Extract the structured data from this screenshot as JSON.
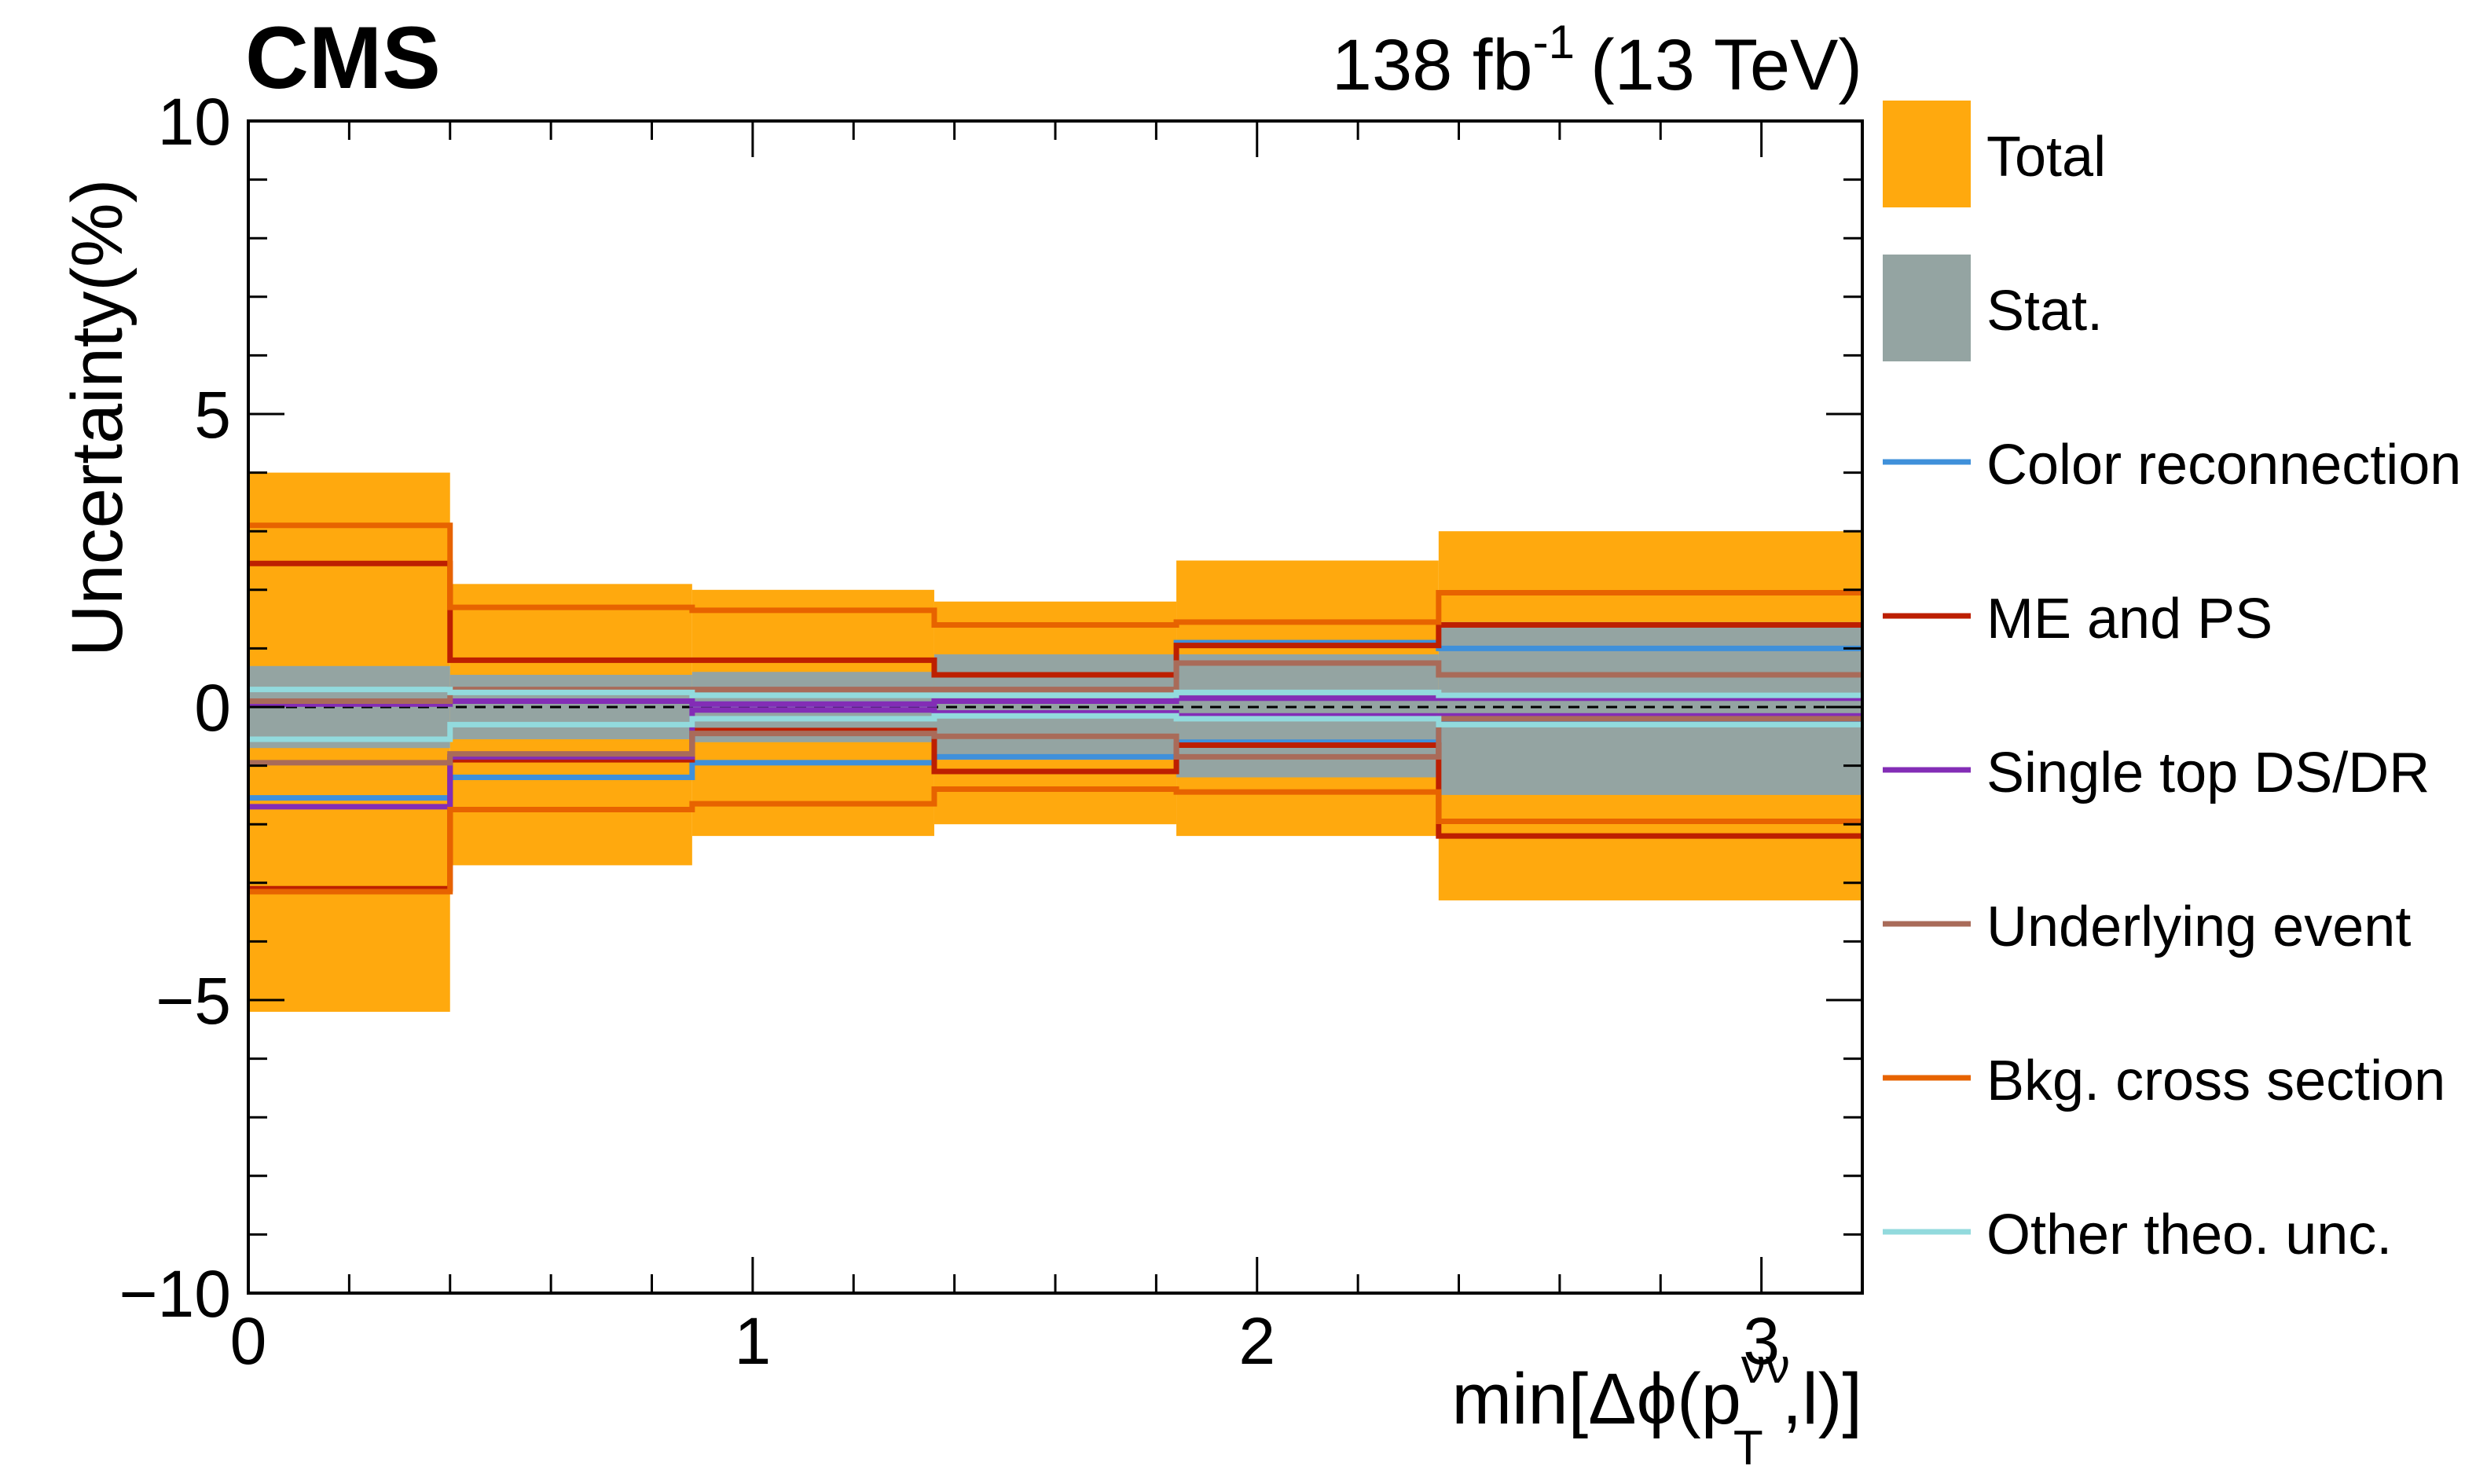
{
  "header": {
    "experiment": "CMS",
    "lumi_value": "138 fb",
    "lumi_exp": "-1",
    "energy": "(13 TeV)"
  },
  "chart_data": {
    "type": "step",
    "xlabel": {
      "prefix": "min[Δϕ(p",
      "sup": "νν",
      "sub": "T",
      "suffix": ",l)]"
    },
    "ylabel": "Uncertainty(%)",
    "xlim": [
      0,
      3.2
    ],
    "ylim": [
      -10,
      10
    ],
    "x_ticks": [
      {
        "value": 0,
        "label": "0"
      },
      {
        "value": 1,
        "label": "1"
      },
      {
        "value": 2,
        "label": "2"
      },
      {
        "value": 3,
        "label": "3"
      }
    ],
    "y_ticks": [
      {
        "value": 10,
        "label": "10"
      },
      {
        "value": 5,
        "label": "5"
      },
      {
        "value": 0,
        "label": "0"
      },
      {
        "value": -5,
        "label": "−5"
      },
      {
        "value": -10,
        "label": "−10"
      }
    ],
    "x_minor_step": 0.2,
    "y_minor_step": 1,
    "bin_edges": [
      0,
      0.4,
      0.88,
      1.36,
      1.84,
      2.36,
      3.2
    ],
    "reference_line": 0,
    "bands": [
      {
        "name": "Total",
        "color": "#ffa90e",
        "up": [
          4.0,
          2.1,
          2.0,
          1.8,
          2.5,
          3.0
        ],
        "down": [
          -5.2,
          -2.7,
          -2.2,
          -2.0,
          -2.2,
          -3.3
        ]
      },
      {
        "name": "Stat.",
        "color": "#94a4a2",
        "up": [
          0.7,
          0.55,
          0.6,
          0.9,
          0.9,
          1.45
        ],
        "down": [
          -0.7,
          -0.55,
          -0.6,
          -0.9,
          -1.2,
          -1.5
        ]
      }
    ],
    "series": [
      {
        "name": "Color reconnection",
        "color": "#3f90da",
        "up": [
          0.1,
          0.1,
          0.05,
          0.1,
          1.1,
          1.0
        ],
        "down": [
          -1.55,
          -1.2,
          -0.95,
          -0.85,
          -0.6,
          -0.25
        ]
      },
      {
        "name": "ME and PS",
        "color": "#bd1f01",
        "up": [
          2.45,
          0.8,
          0.8,
          0.55,
          1.05,
          1.4
        ],
        "down": [
          -3.1,
          -0.9,
          -0.4,
          -1.1,
          -0.65,
          -2.2
        ]
      },
      {
        "name": "Single top DS/DR",
        "color": "#832db6",
        "up": [
          0.05,
          0.1,
          0.05,
          0.1,
          0.15,
          0.15
        ],
        "down": [
          -1.7,
          -0.85,
          -0.05,
          -0.1,
          -0.15,
          -0.15
        ]
      },
      {
        "name": "Underlying event",
        "color": "#a96b59",
        "up": [
          0.1,
          0.3,
          0.3,
          0.3,
          0.75,
          0.55
        ],
        "down": [
          -0.95,
          -0.8,
          -0.45,
          -0.5,
          -0.85,
          -0.2
        ]
      },
      {
        "name": "Bkg. cross section",
        "color": "#e76300",
        "up": [
          3.1,
          1.7,
          1.65,
          1.4,
          1.45,
          1.95
        ],
        "down": [
          -3.15,
          -1.75,
          -1.65,
          -1.4,
          -1.45,
          -1.95
        ]
      },
      {
        "name": "Other theo. unc.",
        "color": "#92dadd",
        "up": [
          0.3,
          0.25,
          0.2,
          0.2,
          0.25,
          0.2
        ],
        "down": [
          -0.55,
          -0.3,
          -0.2,
          -0.15,
          -0.2,
          -0.3
        ]
      }
    ],
    "legend": {
      "placement": "right-outside"
    }
  }
}
